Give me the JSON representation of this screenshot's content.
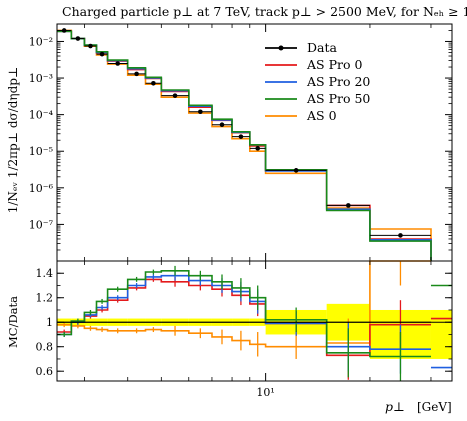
{
  "title": "Charged particle p⊥ at 7 TeV, track p⊥ > 2500 MeV, for Nₑₕ ≥ 1",
  "chart_data": [
    {
      "type": "line",
      "panel": "main",
      "ylabel": "1/Nₑᵥ 1/2πp⊥ dσ/dηdp⊥",
      "yscale": "log",
      "xscale": "log",
      "ylim": [
        1e-08,
        0.03
      ],
      "y_ticks": [
        "10⁻²",
        "10⁻³",
        "10⁻⁴",
        "10⁻⁵",
        "10⁻⁶",
        "10⁻⁷"
      ],
      "x_ticks": [
        "10¹"
      ],
      "legend_position": "top-right",
      "bins": [
        [
          2.5,
          2.75
        ],
        [
          2.75,
          3.0
        ],
        [
          3.0,
          3.25
        ],
        [
          3.25,
          3.5
        ],
        [
          3.5,
          4.0
        ],
        [
          4.0,
          4.5
        ],
        [
          4.5,
          5.0
        ],
        [
          5.0,
          6.0
        ],
        [
          6.0,
          7.0
        ],
        [
          7.0,
          8.0
        ],
        [
          8.0,
          9.0
        ],
        [
          9.0,
          10.0
        ],
        [
          10.0,
          15.0
        ],
        [
          15.0,
          20.0
        ],
        [
          20.0,
          30.0
        ]
      ],
      "series": [
        {
          "name": "Data",
          "color": "#000000",
          "style": "points",
          "values": [
            0.02,
            0.012,
            0.0075,
            0.0045,
            0.0025,
            0.0013,
            0.00072,
            0.00033,
            0.00012,
            5.3e-05,
            2.5e-05,
            1.2e-05,
            3e-06,
            3.3e-07,
            5e-08
          ]
        },
        {
          "name": "AS Pro 0",
          "color": "#e41a1c",
          "style": "steps",
          "values": [
            0.019,
            0.012,
            0.0078,
            0.0049,
            0.0029,
            0.0017,
            0.00098,
            0.00043,
            0.00016,
            7e-05,
            3.2e-05,
            1.4e-05,
            3e-06,
            3.3e-07,
            4e-08
          ]
        },
        {
          "name": "AS Pro 20",
          "color": "#1f5fe0",
          "style": "steps",
          "values": [
            0.019,
            0.012,
            0.0079,
            0.005,
            0.003,
            0.0018,
            0.001,
            0.00045,
            0.00017,
            7.2e-05,
            3.3e-05,
            1.5e-05,
            2.9e-06,
            2.6e-07,
            3.8e-08
          ]
        },
        {
          "name": "AS Pro 50",
          "color": "#1a8a1a",
          "style": "steps",
          "values": [
            0.019,
            0.012,
            0.008,
            0.0052,
            0.0031,
            0.0019,
            0.00105,
            0.00047,
            0.00018,
            7.5e-05,
            3.4e-05,
            1.5e-05,
            3.1e-06,
            2.4e-07,
            3.5e-08
          ]
        },
        {
          "name": "AS 0",
          "color": "#ff8c00",
          "style": "steps",
          "values": [
            0.02,
            0.012,
            0.0074,
            0.0043,
            0.0024,
            0.0012,
            0.00068,
            0.0003,
            0.00011,
            4.7e-05,
            2.2e-05,
            1e-05,
            2.5e-06,
            2.8e-07,
            7.5e-08
          ]
        }
      ]
    },
    {
      "type": "line",
      "panel": "ratio",
      "ylabel": "MC/Data",
      "xlabel": "p⊥",
      "xunit": "[GeV]",
      "xscale": "log",
      "ylim": [
        0.52,
        1.5
      ],
      "y_ticks": [
        0.6,
        0.8,
        1,
        1.2,
        1.4
      ],
      "x_ticks": [
        "10¹"
      ],
      "band_color": "#ffff00",
      "band": [
        [
          0.97,
          1.03
        ],
        [
          0.97,
          1.03
        ],
        [
          0.97,
          1.03
        ],
        [
          0.97,
          1.03
        ],
        [
          0.97,
          1.03
        ],
        [
          0.97,
          1.03
        ],
        [
          0.97,
          1.03
        ],
        [
          0.97,
          1.03
        ],
        [
          0.97,
          1.03
        ],
        [
          0.97,
          1.03
        ],
        [
          0.97,
          1.03
        ],
        [
          0.97,
          1.03
        ],
        [
          0.9,
          1.1
        ],
        [
          0.85,
          1.15
        ],
        [
          0.7,
          1.1
        ]
      ],
      "data_points": [
        1,
        1,
        1,
        1,
        1,
        1,
        1,
        1,
        1,
        1,
        1,
        1,
        1,
        1,
        1
      ],
      "series": [
        {
          "name": "AS Pro 0",
          "color": "#e41a1c",
          "values": [
            0.92,
            1.0,
            1.05,
            1.1,
            1.18,
            1.28,
            1.35,
            1.33,
            1.3,
            1.27,
            1.22,
            1.15,
            0.99,
            0.73,
            0.98
          ],
          "errors": [
            0.01,
            0.01,
            0.01,
            0.01,
            0.01,
            0.01,
            0.01,
            0.02,
            0.02,
            0.03,
            0.04,
            0.05,
            0.05,
            0.1,
            0.1
          ]
        },
        {
          "name": "AS Pro 20",
          "color": "#1f5fe0",
          "values": [
            0.9,
            1.0,
            1.06,
            1.12,
            1.2,
            1.3,
            1.37,
            1.38,
            1.34,
            1.3,
            1.25,
            1.17,
            0.99,
            0.8,
            0.78
          ],
          "errors": [
            0.01,
            0.01,
            0.01,
            0.01,
            0.01,
            0.01,
            0.01,
            0.02,
            0.02,
            0.03,
            0.04,
            0.05,
            0.05,
            0.1,
            0.1
          ]
        },
        {
          "name": "AS Pro 50",
          "color": "#1a8a1a",
          "values": [
            0.9,
            1.01,
            1.08,
            1.17,
            1.27,
            1.35,
            1.41,
            1.42,
            1.38,
            1.33,
            1.28,
            1.2,
            1.02,
            0.75,
            0.72
          ],
          "errors": [
            0.01,
            0.01,
            0.01,
            0.01,
            0.01,
            0.01,
            0.01,
            0.02,
            0.02,
            0.03,
            0.04,
            0.05,
            0.05,
            0.1,
            0.1
          ]
        },
        {
          "name": "AS 0",
          "color": "#ff8c00",
          "values": [
            0.98,
            0.97,
            0.95,
            0.94,
            0.93,
            0.93,
            0.94,
            0.93,
            0.91,
            0.88,
            0.85,
            0.82,
            0.8,
            0.83,
            1.5
          ],
          "errors": [
            0.01,
            0.01,
            0.01,
            0.01,
            0.01,
            0.01,
            0.01,
            0.02,
            0.02,
            0.03,
            0.04,
            0.05,
            0.05,
            0.1,
            0.1
          ]
        }
      ],
      "ratio_extra": {
        "last_bin": [
          [
            30,
            34,
            1.03
          ],
          [
            30,
            34,
            1.3
          ],
          [
            30,
            34,
            0.63
          ]
        ]
      }
    }
  ]
}
